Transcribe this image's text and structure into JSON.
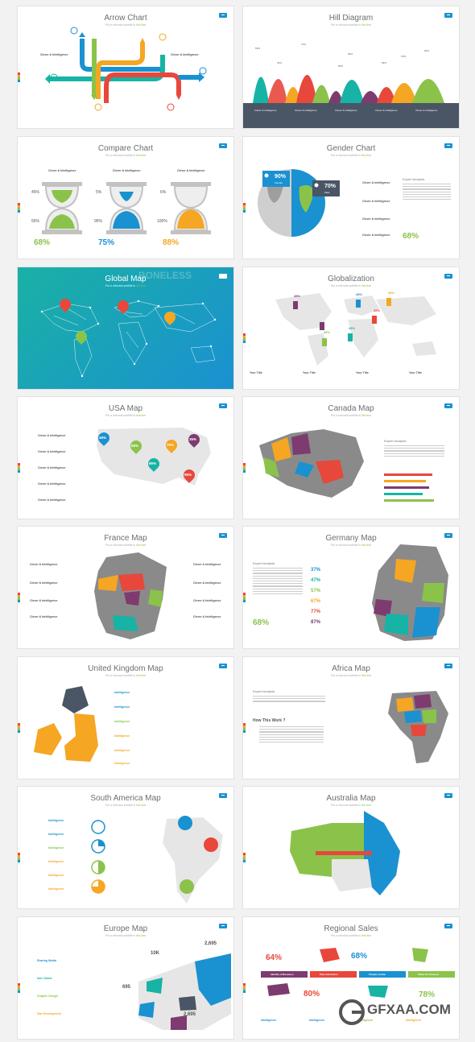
{
  "slides": [
    {
      "title": "Arrow Chart",
      "subtitle_pre": "Put a relevant subtitle in ",
      "subtitle_hl": "this line",
      "labels": [
        "Clever & Intelligence",
        "Clever & Intelligence"
      ]
    },
    {
      "title": "Hill Diagram",
      "subtitle_pre": "Put a relevant subtitle in ",
      "subtitle_hl": "this line",
      "labels": [
        "Clever & Intelligence",
        "Clever & Intelligence",
        "Clever & Intelligence",
        "Clever & Intelligence",
        "Clever & Intelligence"
      ],
      "values": [
        "53%",
        "44%",
        "71%",
        "28%",
        "53%",
        "64%",
        "52%",
        "48%",
        "70%",
        "62%"
      ]
    },
    {
      "title": "Compare Chart",
      "subtitle_pre": "Put a relevant subtitle in ",
      "subtitle_hl": "this line",
      "labels": [
        "Clever & Intelligence",
        "Clever & Intelligence",
        "Clever & Intelligence"
      ],
      "side_top": [
        "45%",
        "5%",
        "6%"
      ],
      "side_bottom": [
        "55%",
        "95%",
        "100%"
      ],
      "big": [
        "68%",
        "75%",
        "88%"
      ]
    },
    {
      "title": "Gender Chart",
      "subtitle_pre": "Put a relevant subtitle in ",
      "subtitle_hl": "this line",
      "female_pct": "90%",
      "female_lbl": "Female",
      "male_pct": "70%",
      "male_lbl": "Male",
      "labels": [
        "Clever & Intelligence",
        "Clever & Intelligence",
        "Clever & Intelligence",
        "Clever & Intelligence"
      ],
      "analysis": "Expert Analysis",
      "big": "68%"
    },
    {
      "title": "Global Map",
      "subtitle_pre": "Put a relevant subtitle in ",
      "subtitle_hl": "this line",
      "watermark": "BONELESS"
    },
    {
      "title": "Globalization",
      "subtitle_pre": "Put a relevant subtitle in ",
      "subtitle_hl": "this line",
      "pins": [
        "45%",
        "45%",
        "45%",
        "45%",
        "45%",
        "45%",
        "45%"
      ],
      "legend": [
        "Your Title",
        "Your Title",
        "Your Title",
        "Your Title"
      ]
    },
    {
      "title": "USA Map",
      "subtitle_pre": "Put a relevant subtitle in ",
      "subtitle_hl": "this line",
      "labels": [
        "Clever & Intelligence",
        "Clever & Intelligence",
        "Clever & Intelligence",
        "Clever & Intelligence",
        "Clever & Intelligence"
      ],
      "pins": [
        "46%",
        "56%",
        "76%",
        "35%",
        "86%",
        "96%"
      ]
    },
    {
      "title": "Canada Map",
      "subtitle_pre": "Put a relevant subtitle in ",
      "subtitle_hl": "this line",
      "analysis": "Expert Analysis"
    },
    {
      "title": "France Map",
      "subtitle_pre": "Put a relevant subtitle in ",
      "subtitle_hl": "this line",
      "labels_left": [
        "Clever & Intelligence",
        "Clever & Intelligence",
        "Clever & Intelligence",
        "Clever & Intelligence"
      ],
      "labels_right": [
        "Clever & Intelligence",
        "Clever & Intelligence",
        "Clever & Intelligence",
        "Clever & Intelligence"
      ]
    },
    {
      "title": "Germany Map",
      "subtitle_pre": "Put a relevant subtitle in ",
      "subtitle_hl": "this line",
      "analysis": "Expert Analysis",
      "stats": [
        "37%",
        "47%",
        "57%",
        "67%",
        "77%",
        "87%"
      ],
      "big": "68%"
    },
    {
      "title": "United Kingdom Map",
      "subtitle_pre": "Put a relevant subtitle in ",
      "subtitle_hl": "this line",
      "labels": [
        "Intelligence",
        "Intelligence",
        "Intelligence",
        "Intelligence",
        "Intelligence",
        "Intelligence"
      ]
    },
    {
      "title": "Africa Map",
      "subtitle_pre": "Put a relevant subtitle in ",
      "subtitle_hl": "this line",
      "analysis": "Expert Analysis",
      "how": "How This Work ?"
    },
    {
      "title": "South America Map",
      "subtitle_pre": "Put a relevant subtitle in ",
      "subtitle_hl": "this line",
      "labels": [
        "Intelligence",
        "Intelligence",
        "Intelligence",
        "Intelligence",
        "Intelligence",
        "Intelligence"
      ]
    },
    {
      "title": "Australia Map",
      "subtitle_pre": "Put a relevant subtitle in ",
      "subtitle_hl": "this line"
    },
    {
      "title": "Europe Map",
      "subtitle_pre": "Put a relevant subtitle in ",
      "subtitle_hl": "this line",
      "labels": [
        "Sharing Media",
        "Info Charts",
        "Graphic Design",
        "Star Development"
      ],
      "nums": [
        "10K",
        "2,695",
        "695",
        "2,695"
      ]
    },
    {
      "title": "Regional Sales",
      "subtitle_pre": "Put a relevant subtitle in ",
      "subtitle_hl": "this line",
      "big": [
        "64%",
        "68%",
        "80%",
        "78%"
      ],
      "steps": [
        "Identify of Business",
        "Plan and Action",
        "Prepare Action",
        "Share for Success"
      ],
      "labels": [
        "Intelligence",
        "Intelligence",
        "Intelligence",
        "Intelligence"
      ]
    }
  ],
  "watermark": {
    "brand": "GFXAA.COM"
  },
  "colors": {
    "blue": "#1a91d1",
    "green": "#8bc34a",
    "orange": "#f5a623",
    "red": "#e8473c",
    "teal": "#17b3a5",
    "purple": "#7e3b6f",
    "grey": "#b8b8b8"
  }
}
